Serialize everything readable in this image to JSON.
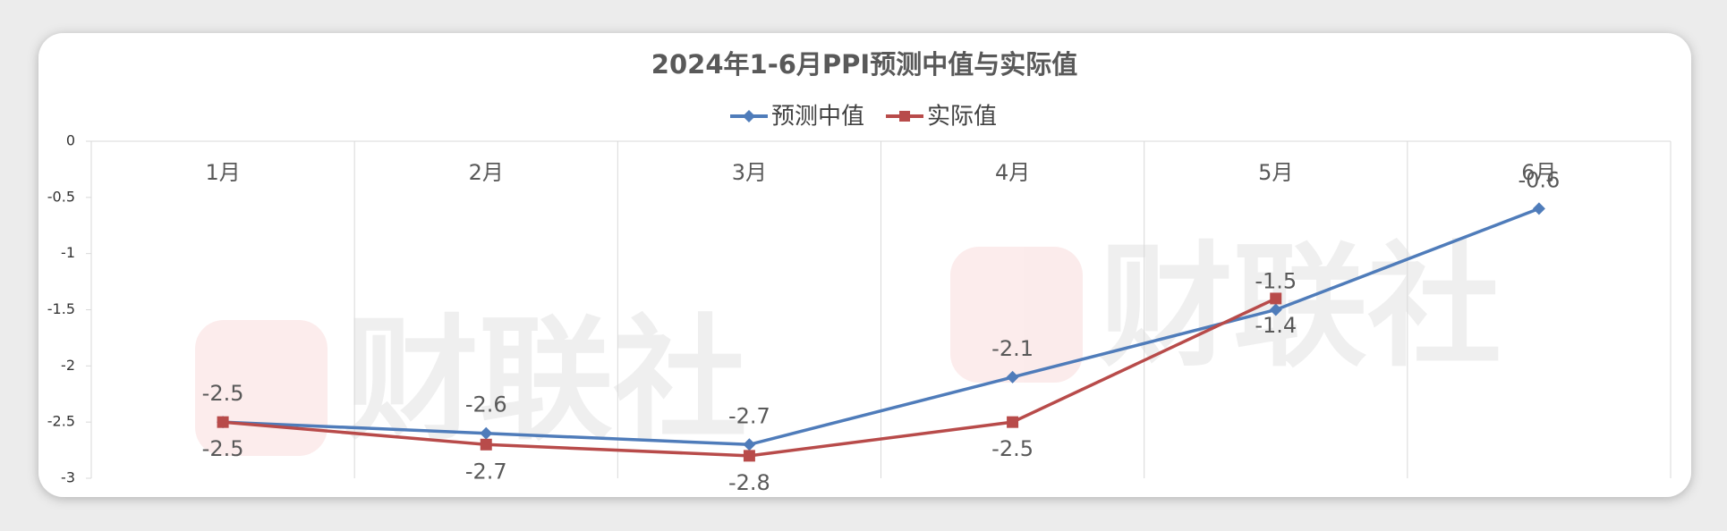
{
  "chart_data": {
    "type": "line",
    "title": "2024年1-6月PPI预测中值与实际值",
    "categories": [
      "1月",
      "2月",
      "3月",
      "4月",
      "5月",
      "6月"
    ],
    "series": [
      {
        "name": "预测中值",
        "color": "#4f7cba",
        "values": [
          -2.5,
          -2.6,
          -2.7,
          -2.1,
          -1.5,
          -0.6
        ],
        "label_position": "above"
      },
      {
        "name": "实际值",
        "color": "#b84b4a",
        "values": [
          -2.5,
          -2.7,
          -2.8,
          -2.5,
          -1.4,
          null
        ],
        "label_position": "below"
      }
    ],
    "ylim": [
      -3,
      0
    ],
    "yticks": [
      0,
      -0.5,
      -1,
      -1.5,
      -2,
      -2.5,
      -3
    ],
    "legend": "top",
    "watermark": "财联社"
  }
}
